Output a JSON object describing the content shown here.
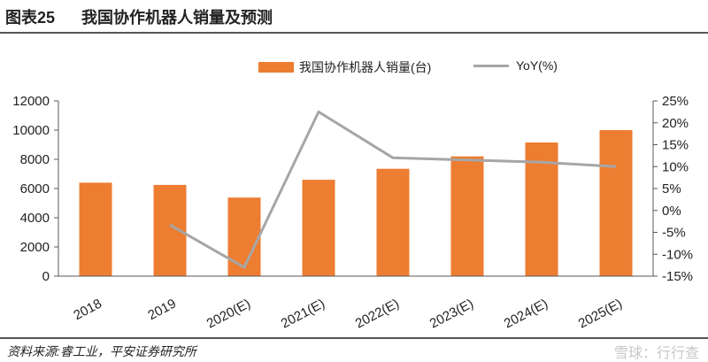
{
  "figure": {
    "label": "图表25",
    "title": "我国协作机器人销量及预测"
  },
  "source": "资料来源:睿工业，平安证券研究所",
  "watermark": "雪球：行行查",
  "chart_data": {
    "type": "bar+line",
    "title": "我国协作机器人销量及预测",
    "categories": [
      "2018",
      "2019",
      "2020(E)",
      "2021(E)",
      "2022(E)",
      "2023(E)",
      "2024(E)",
      "2025(E)"
    ],
    "series": [
      {
        "name": "我国协作机器人销量(台)",
        "type": "bar",
        "axis": "left",
        "color": "#ED7D31",
        "values": [
          6400,
          6250,
          5380,
          6600,
          7350,
          8200,
          9150,
          10000
        ]
      },
      {
        "name": "YoY(%)",
        "type": "line",
        "axis": "right",
        "color": "#A6A6A6",
        "values": [
          null,
          -3.3,
          -13.0,
          22.5,
          12.0,
          11.5,
          11.0,
          10.0
        ]
      }
    ],
    "y_left": {
      "min": 0,
      "max": 12000,
      "ticks": [
        "0",
        "2000",
        "4000",
        "6000",
        "8000",
        "10000",
        "12000"
      ]
    },
    "y_right": {
      "min": -15,
      "max": 25,
      "ticks": [
        "-15%",
        "-10%",
        "-5%",
        "0%",
        "5%",
        "10%",
        "15%",
        "20%",
        "25%"
      ]
    },
    "legend_position": "top-center",
    "grid": false
  }
}
